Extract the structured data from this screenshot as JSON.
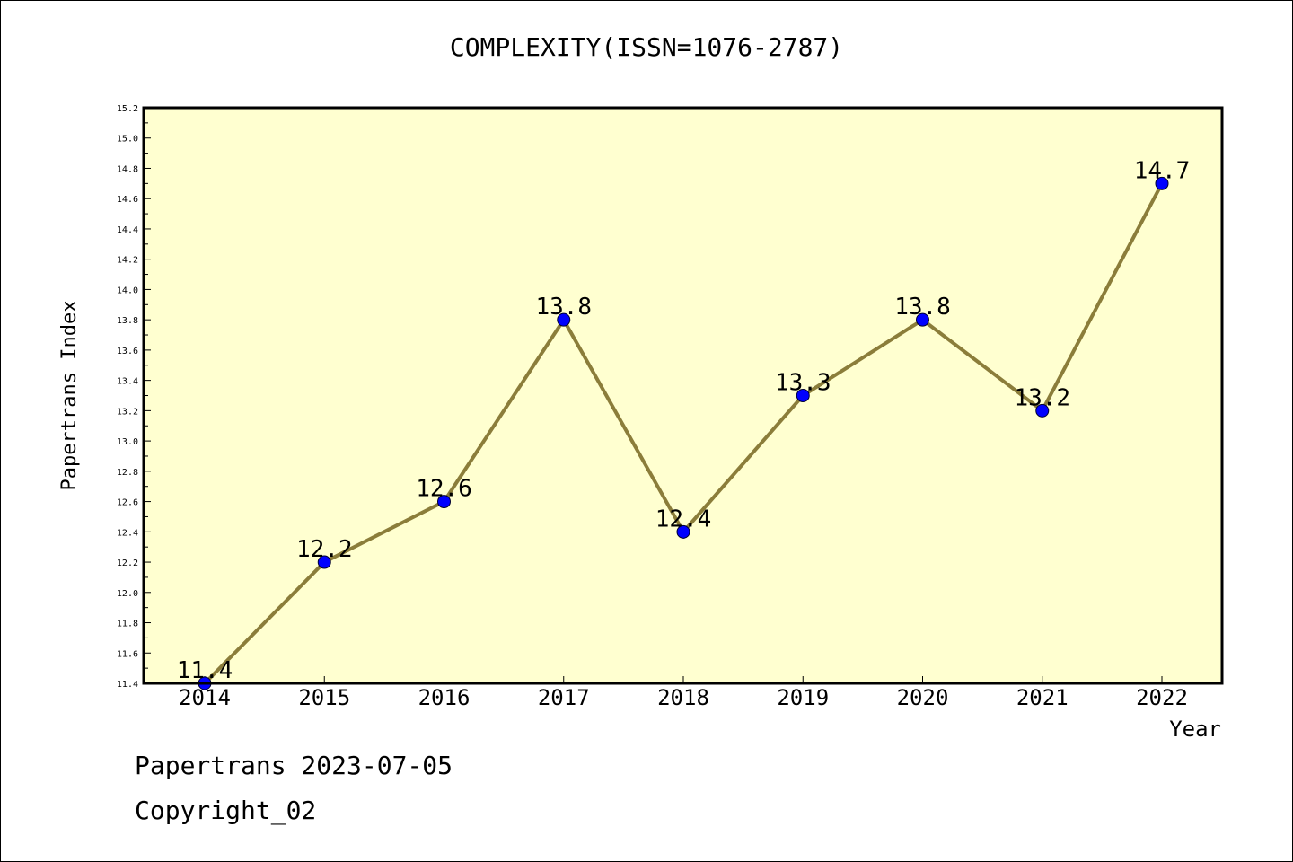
{
  "chart_data": {
    "type": "line",
    "title": "COMPLEXITY(ISSN=1076-2787)",
    "xlabel": "Year",
    "ylabel": "Papertrans Index",
    "categories": [
      "2014",
      "2015",
      "2016",
      "2017",
      "2018",
      "2019",
      "2020",
      "2021",
      "2022"
    ],
    "values": [
      11.4,
      12.2,
      12.6,
      13.8,
      12.4,
      13.3,
      13.8,
      13.2,
      14.7
    ],
    "data_labels": [
      "11.4",
      "12.2",
      "12.6",
      "13.8",
      "12.4",
      "13.3",
      "13.8",
      "13.2",
      "14.7"
    ],
    "ylim": [
      11.4,
      15.2
    ],
    "yticks": [
      "11.4",
      "11.6",
      "11.8",
      "12.0",
      "12.2",
      "12.4",
      "12.6",
      "12.8",
      "13.0",
      "13.2",
      "13.4",
      "13.6",
      "13.8",
      "14.0",
      "14.2",
      "14.4",
      "14.6",
      "14.8",
      "15.0",
      "15.2"
    ],
    "grid": false,
    "colors": {
      "plot_background": "#ffffd0",
      "line": "#8b7d3a",
      "marker": "#0000ff"
    }
  },
  "footer": {
    "line1": "Papertrans 2023-07-05",
    "line2": "Copyright_02"
  }
}
